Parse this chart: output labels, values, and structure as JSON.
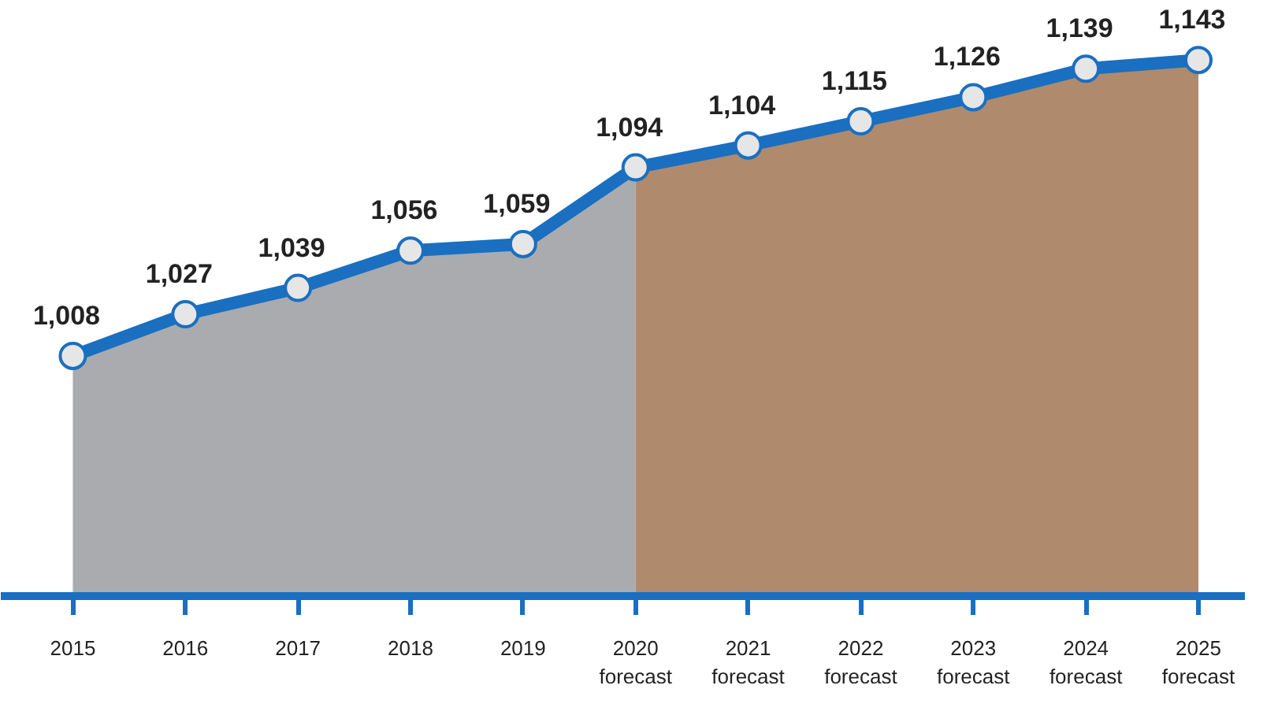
{
  "chart_data": {
    "type": "area",
    "categories": [
      "2015",
      "2016",
      "2017",
      "2018",
      "2019",
      "2020\nforecast",
      "2021\nforecast",
      "2022\nforecast",
      "2023\nforecast",
      "2024\nforecast",
      "2025\nforecast"
    ],
    "series": [
      {
        "color": "#a9abaf",
        "values": [
          1008,
          1027,
          1039,
          1056,
          1059,
          1094,
          null,
          null,
          null,
          null,
          null
        ]
      },
      {
        "color": "#b08a6c",
        "values": [
          null,
          null,
          null,
          null,
          null,
          1094,
          1104,
          1115,
          1126,
          1139,
          1143
        ]
      },
      {
        "type": "line",
        "color": "#1a6fc0",
        "marker": "circle",
        "values": [
          1008,
          1027,
          1039,
          1056,
          1059,
          1094,
          1104,
          1115,
          1126,
          1139,
          1143
        ],
        "value_labels": [
          "1,008",
          "1,027",
          "1,039",
          "1,056",
          "1,059",
          "1,094",
          "1,104",
          "1,115",
          "1,126",
          "1,139",
          "1,143"
        ]
      }
    ],
    "tick_labels": "x",
    "line_style": "solid"
  }
}
